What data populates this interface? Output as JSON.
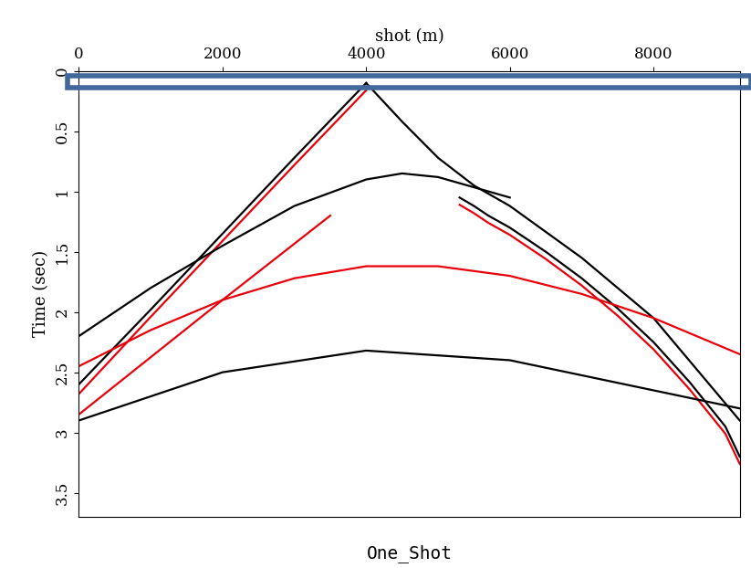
{
  "chart_data": {
    "type": "line",
    "title": "One_Shot",
    "x_label": "shot (m)",
    "y_label": "Time (sec)",
    "xlim": [
      0,
      9200
    ],
    "xticks": [
      0,
      2000,
      4000,
      6000,
      8000
    ],
    "ylim": [
      3.7,
      0
    ],
    "yticks": [
      0,
      0.5,
      1,
      1.5,
      2,
      2.5,
      3,
      3.5
    ],
    "grid": false,
    "series": [
      {
        "color": "#000000",
        "x": [
          4000,
          3000,
          2000,
          1000,
          0
        ],
        "values": [
          0.1,
          0.72,
          1.35,
          1.98,
          2.6
        ]
      },
      {
        "color": "#e8000b",
        "x": [
          4000,
          3000,
          2000,
          1000,
          0
        ],
        "values": [
          0.16,
          0.78,
          1.41,
          2.04,
          2.68
        ]
      },
      {
        "color": "#000000",
        "x": [
          4000,
          4500,
          5000,
          5500,
          6000,
          7000,
          8000,
          9200
        ],
        "values": [
          0.1,
          0.42,
          0.72,
          0.95,
          1.12,
          1.55,
          2.05,
          2.9
        ]
      },
      {
        "color": "#000000",
        "x": [
          5300,
          5500,
          5700,
          6000,
          6500,
          7000,
          7500,
          8000,
          8500,
          9000,
          9200
        ],
        "values": [
          1.05,
          1.12,
          1.2,
          1.3,
          1.5,
          1.72,
          1.97,
          2.25,
          2.58,
          2.95,
          3.2
        ]
      },
      {
        "color": "#e8000b",
        "x": [
          5300,
          5500,
          5700,
          6000,
          6500,
          7000,
          7500,
          8000,
          8500,
          9000,
          9200
        ],
        "values": [
          1.11,
          1.18,
          1.26,
          1.36,
          1.56,
          1.78,
          2.03,
          2.31,
          2.64,
          3.01,
          3.26
        ]
      },
      {
        "color": "#000000",
        "x": [
          0,
          1000,
          2000,
          3000,
          4000,
          4500,
          5000,
          6000
        ],
        "values": [
          2.2,
          1.8,
          1.45,
          1.12,
          0.9,
          0.85,
          0.88,
          1.05
        ]
      },
      {
        "color": "#e8000b",
        "x": [
          0,
          1000,
          2000,
          3000,
          4000,
          5000,
          6000,
          7000,
          8000,
          9200
        ],
        "values": [
          2.45,
          2.15,
          1.9,
          1.72,
          1.62,
          1.62,
          1.7,
          1.85,
          2.05,
          2.35
        ]
      },
      {
        "color": "#000000",
        "x": [
          0,
          2000,
          4000,
          6000,
          9200
        ],
        "values": [
          2.9,
          2.5,
          2.32,
          2.4,
          2.8
        ]
      },
      {
        "color": "#e8000b",
        "x": [
          3500,
          2000,
          0
        ],
        "values": [
          1.2,
          1.9,
          2.85
        ]
      }
    ]
  }
}
